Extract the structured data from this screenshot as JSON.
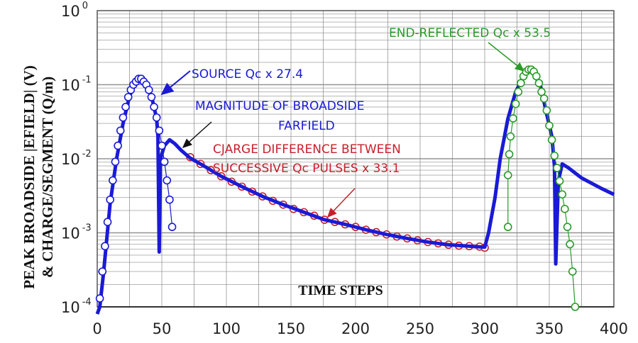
{
  "chart_data": {
    "type": "line",
    "xlabel": "TIME STEPS",
    "ylabel": [
      "PEAK BROADSIDE |EFIELD| (V)",
      "& CHARGE/SEGMENT (Q/m)"
    ],
    "xlim": [
      0,
      400
    ],
    "ylim": [
      0.0001,
      1
    ],
    "yscale": "log",
    "grid": true,
    "xticks": [
      "0",
      "50",
      "100",
      "150",
      "200",
      "250",
      "300",
      "350",
      "400"
    ],
    "yticks": [
      {
        "base": "10",
        "exp": "0"
      },
      {
        "base": "10",
        "exp": "-1"
      },
      {
        "base": "10",
        "exp": "-2"
      },
      {
        "base": "10",
        "exp": "-3"
      },
      {
        "base": "10",
        "exp": "-4"
      }
    ],
    "annotations": {
      "source": "SOURCE Qc x 27.4",
      "farfield_1": "MAGNITUDE OF BROADSIDE",
      "farfield_2": "FARFIELD",
      "charge_1": "CJARGE DIFFERENCE BETWEEN",
      "charge_2": "SUCCESSIVE Qc PULSES x 33.1",
      "end": "END-REFLECTED Qc x 53.5"
    },
    "colors": {
      "efield": "#1a1ad6",
      "source": "#1a1ad6",
      "charge": "#c8202a",
      "end": "#2a9a2a",
      "grid": "#888888"
    },
    "series": [
      {
        "key": "efield",
        "style": "line",
        "points": [
          [
            0,
            8e-05
          ],
          [
            2,
            0.0001
          ],
          [
            5,
            0.0003
          ],
          [
            10,
            0.0025
          ],
          [
            15,
            0.01
          ],
          [
            20,
            0.03
          ],
          [
            25,
            0.07
          ],
          [
            30,
            0.11
          ],
          [
            33,
            0.12
          ],
          [
            37,
            0.11
          ],
          [
            42,
            0.07
          ],
          [
            46,
            0.035
          ],
          [
            47,
            0.02
          ],
          [
            48,
            0.00055
          ],
          [
            49,
            0.01
          ],
          [
            52,
            0.015
          ],
          [
            56,
            0.018
          ],
          [
            60,
            0.016
          ],
          [
            65,
            0.013
          ],
          [
            72,
            0.0102
          ],
          [
            80,
            0.0085
          ],
          [
            96,
            0.0058
          ],
          [
            112,
            0.0042
          ],
          [
            128,
            0.0031
          ],
          [
            144,
            0.0024
          ],
          [
            160,
            0.0019
          ],
          [
            176,
            0.0015
          ],
          [
            192,
            0.0013
          ],
          [
            208,
            0.0011
          ],
          [
            224,
            0.00095
          ],
          [
            240,
            0.00084
          ],
          [
            256,
            0.00075
          ],
          [
            272,
            0.00069
          ],
          [
            288,
            0.00066
          ],
          [
            300,
            0.00064
          ],
          [
            303,
            0.001
          ],
          [
            308,
            0.003
          ],
          [
            312,
            0.01
          ],
          [
            318,
            0.035
          ],
          [
            324,
            0.08
          ],
          [
            330,
            0.13
          ],
          [
            334,
            0.15
          ],
          [
            338,
            0.15
          ],
          [
            343,
            0.1
          ],
          [
            348,
            0.04
          ],
          [
            352,
            0.02
          ],
          [
            354,
            0.008
          ],
          [
            355,
            0.00038
          ],
          [
            357,
            0.005
          ],
          [
            360,
            0.0085
          ],
          [
            365,
            0.0075
          ],
          [
            375,
            0.0055
          ],
          [
            390,
            0.004
          ],
          [
            400,
            0.0033
          ]
        ]
      },
      {
        "key": "source",
        "style": "circles",
        "points": [
          [
            2,
            0.00013
          ],
          [
            4,
            0.0003
          ],
          [
            6,
            0.00066
          ],
          [
            8,
            0.0014
          ],
          [
            10,
            0.0028
          ],
          [
            12,
            0.0051
          ],
          [
            14,
            0.0091
          ],
          [
            16,
            0.015
          ],
          [
            18,
            0.024
          ],
          [
            20,
            0.036
          ],
          [
            22,
            0.05
          ],
          [
            24,
            0.068
          ],
          [
            26,
            0.085
          ],
          [
            28,
            0.1
          ],
          [
            30,
            0.11
          ],
          [
            32,
            0.12
          ],
          [
            34,
            0.12
          ],
          [
            36,
            0.11
          ],
          [
            38,
            0.1
          ],
          [
            40,
            0.085
          ],
          [
            42,
            0.068
          ],
          [
            44,
            0.05
          ],
          [
            46,
            0.036
          ],
          [
            48,
            0.024
          ],
          [
            50,
            0.015
          ],
          [
            52,
            0.0091
          ],
          [
            54,
            0.0051
          ],
          [
            56,
            0.0028
          ],
          [
            58,
            0.0012
          ]
        ]
      },
      {
        "key": "charge",
        "style": "circles",
        "points": [
          [
            72,
            0.0105
          ],
          [
            80,
            0.0085
          ],
          [
            88,
            0.007
          ],
          [
            96,
            0.0058
          ],
          [
            104,
            0.0049
          ],
          [
            112,
            0.0042
          ],
          [
            120,
            0.0036
          ],
          [
            128,
            0.0031
          ],
          [
            136,
            0.0027
          ],
          [
            144,
            0.0024
          ],
          [
            152,
            0.0021
          ],
          [
            160,
            0.0019
          ],
          [
            168,
            0.0017
          ],
          [
            176,
            0.0015
          ],
          [
            184,
            0.0014
          ],
          [
            192,
            0.0013
          ],
          [
            200,
            0.0012
          ],
          [
            208,
            0.0011
          ],
          [
            216,
            0.00102
          ],
          [
            224,
            0.00095
          ],
          [
            232,
            0.00089
          ],
          [
            240,
            0.00084
          ],
          [
            248,
            0.00079
          ],
          [
            256,
            0.00075
          ],
          [
            264,
            0.00072
          ],
          [
            272,
            0.00069
          ],
          [
            280,
            0.00067
          ],
          [
            288,
            0.00066
          ],
          [
            296,
            0.00065
          ],
          [
            300,
            0.00063
          ]
        ]
      },
      {
        "key": "end",
        "style": "circles",
        "points": [
          [
            318,
            0.0012
          ],
          [
            318,
            0.006
          ],
          [
            319,
            0.0115
          ],
          [
            320,
            0.02
          ],
          [
            322,
            0.035
          ],
          [
            324,
            0.055
          ],
          [
            326,
            0.08
          ],
          [
            328,
            0.105
          ],
          [
            330,
            0.13
          ],
          [
            332,
            0.15
          ],
          [
            334,
            0.16
          ],
          [
            336,
            0.16
          ],
          [
            338,
            0.15
          ],
          [
            340,
            0.13
          ],
          [
            342,
            0.105
          ],
          [
            344,
            0.08
          ],
          [
            346,
            0.065
          ],
          [
            348,
            0.045
          ],
          [
            350,
            0.028
          ],
          [
            352,
            0.018
          ],
          [
            354,
            0.011
          ],
          [
            356,
            0.0075
          ],
          [
            358,
            0.005
          ],
          [
            360,
            0.0033
          ],
          [
            362,
            0.0021
          ],
          [
            364,
            0.0012
          ],
          [
            366,
            0.0007
          ],
          [
            368,
            0.0003
          ],
          [
            370,
            0.0001
          ]
        ]
      }
    ]
  }
}
